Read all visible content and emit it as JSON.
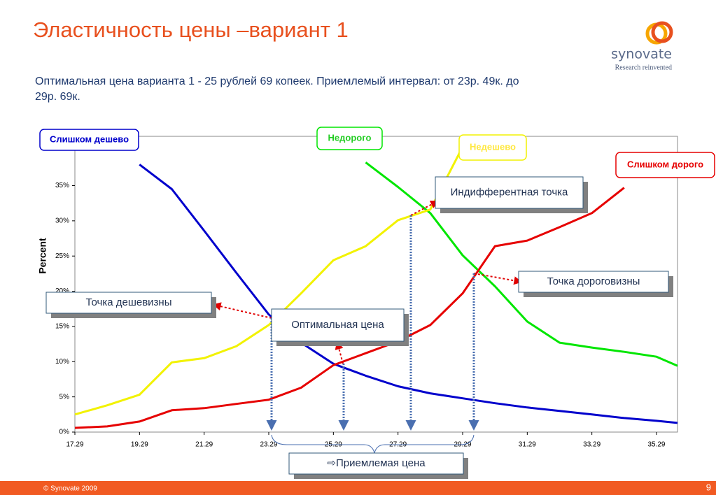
{
  "chart_data": {
    "type": "line",
    "title": "Эластичность цены –вариант 1",
    "subtitle": "Оптимальная цена варианта 1  - 25 рублей 69 копеек. Приемлемый интервал: от 23р. 49к. до 29р. 69к.",
    "brand": "synovate",
    "tagline": "Research reinvented",
    "footer": "© Synovate 2009",
    "page_number": "9",
    "y_label": "Percent",
    "x": [
      17.29,
      18.29,
      19.29,
      20.29,
      21.29,
      22.29,
      23.29,
      24.29,
      25.29,
      26.29,
      27.29,
      28.29,
      29.29,
      30.29,
      31.29,
      32.29,
      33.29,
      34.29,
      35.29,
      35.94
    ],
    "series": [
      {
        "name": "Слишком дешево",
        "color": "#0000cc",
        "values": [
          null,
          null,
          38,
          34.5,
          28.6,
          22.6,
          16.7,
          12.7,
          9.7,
          8,
          6.5,
          5.5,
          4.8,
          4.1,
          3.5,
          3,
          2.5,
          2,
          1.6,
          1.3
        ]
      },
      {
        "name": "Недорого",
        "color": "#00e600",
        "values": [
          null,
          null,
          null,
          null,
          null,
          null,
          null,
          null,
          null,
          38.3,
          34.8,
          31.1,
          25.1,
          20.7,
          15.7,
          12.7,
          12,
          11.4,
          10.7,
          9.4
        ]
      },
      {
        "name": "Недешево",
        "color": "#f2f200",
        "values": [
          2.5,
          3.8,
          5.3,
          9.9,
          10.5,
          12.2,
          15.2,
          19.7,
          24.4,
          26.4,
          30.1,
          31.6,
          40.5,
          null,
          null,
          null,
          null,
          null,
          null,
          null
        ]
      },
      {
        "name": "Слишком дорого",
        "color": "#e60000",
        "values": [
          0.6,
          0.8,
          1.5,
          3.1,
          3.4,
          4,
          4.6,
          6.3,
          9.5,
          11.2,
          12.9,
          15.2,
          19.7,
          26.4,
          27.2,
          29.1,
          31.1,
          34.7,
          null,
          null
        ]
      }
    ],
    "xlim": [
      17.29,
      35.94
    ],
    "ylim": [
      0,
      42
    ],
    "xticks": [
      17.29,
      19.29,
      21.29,
      23.29,
      25.29,
      27.29,
      29.29,
      31.29,
      33.29,
      35.29
    ],
    "yticks": [
      {
        "value": 0,
        "label": "0%"
      },
      {
        "value": 5,
        "label": "5%"
      },
      {
        "value": 10,
        "label": "10%"
      },
      {
        "value": 15,
        "label": "15%"
      },
      {
        "value": 20,
        "label": "20%"
      },
      {
        "value": 25,
        "label": "25%"
      },
      {
        "value": 30,
        "label": "30%"
      },
      {
        "value": 35,
        "label": "35%"
      }
    ],
    "annotations": [
      "Точка дешевизны",
      "Оптимальная цена",
      "Индифферентная точка",
      "Точка дороговизны",
      "⇨Приемлемая цена"
    ]
  }
}
